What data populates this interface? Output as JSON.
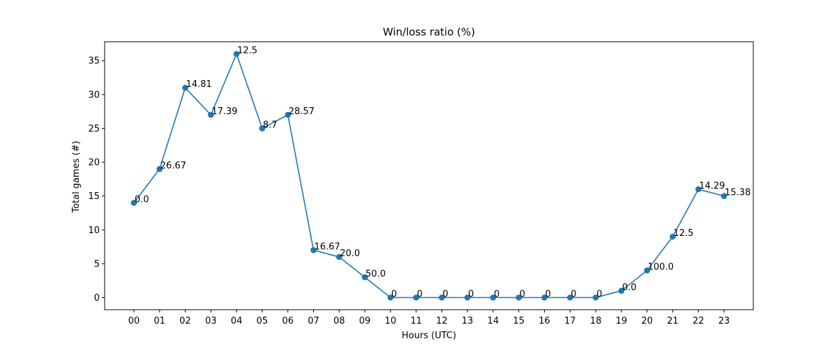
{
  "chart_data": {
    "type": "line",
    "title": "Win/loss ratio (%)",
    "xlabel": "Hours (UTC)",
    "ylabel": "Total games (#)",
    "categories": [
      "00",
      "01",
      "02",
      "03",
      "04",
      "05",
      "06",
      "07",
      "08",
      "09",
      "10",
      "11",
      "12",
      "13",
      "14",
      "15",
      "16",
      "17",
      "18",
      "19",
      "20",
      "21",
      "22",
      "23"
    ],
    "values": [
      14,
      19,
      31,
      27,
      36,
      25,
      27,
      7,
      6,
      3,
      0,
      0,
      0,
      0,
      0,
      0,
      0,
      0,
      0,
      1,
      4,
      9,
      16,
      15
    ],
    "point_labels": [
      "0.0",
      "26.67",
      "14.81",
      "17.39",
      "12.5",
      "8.7",
      "28.57",
      "16.67",
      "20.0",
      "50.0",
      "0",
      "0",
      "0",
      "0",
      "0",
      "0",
      "0",
      "0",
      "0",
      "0.0",
      "100.0",
      "12.5",
      "14.29",
      "15.38"
    ],
    "yticks": [
      0,
      5,
      10,
      15,
      20,
      25,
      30,
      35
    ],
    "ylim": [
      -1.8,
      37.8
    ],
    "grid": false,
    "color": "#1f77b4"
  }
}
